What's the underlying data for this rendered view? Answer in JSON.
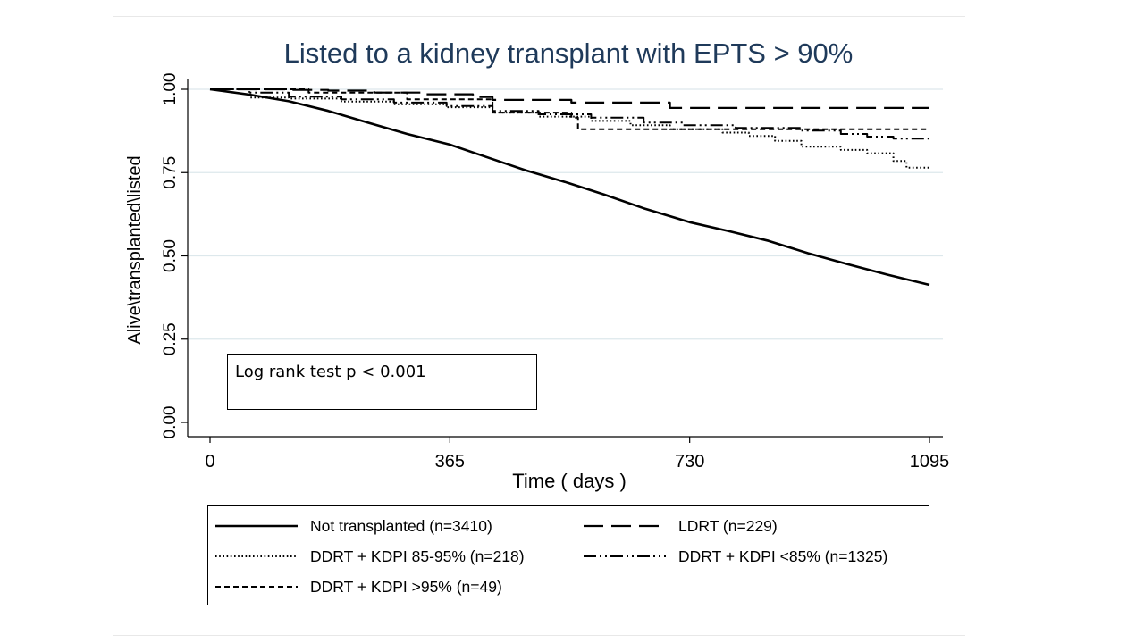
{
  "chart_data": {
    "type": "line",
    "title": "Listed to a kidney transplant with EPTS > 90%",
    "xlabel": "Time ( days )",
    "ylabel": "Alive\\transplanted\\listed",
    "xlim": [
      0,
      1095
    ],
    "ylim": [
      0,
      1
    ],
    "xticks": [
      0,
      365,
      730,
      1095
    ],
    "xtick_labels": [
      "0",
      "365",
      "730",
      "1095"
    ],
    "yticks": [
      0,
      0.25,
      0.5,
      0.75,
      1.0
    ],
    "ytick_labels": [
      "0.00",
      "0.25",
      "0.50",
      "0.75",
      "1.00"
    ],
    "grid": "horizontal",
    "annotation": "Log rank test p < 0.001",
    "series": [
      {
        "name": "Not transplanted (n=3410)",
        "style": "solid",
        "x": [
          0,
          60,
          120,
          180,
          240,
          300,
          365,
          420,
          480,
          540,
          600,
          660,
          730,
          790,
          850,
          910,
          970,
          1030,
          1095
        ],
        "y": [
          1.0,
          0.984,
          0.964,
          0.935,
          0.9,
          0.866,
          0.834,
          0.797,
          0.757,
          0.722,
          0.684,
          0.643,
          0.601,
          0.574,
          0.545,
          0.508,
          0.475,
          0.444,
          0.413
        ]
      },
      {
        "name": "LDRT (n=229)",
        "style": "longdash",
        "x": [
          0,
          120,
          180,
          250,
          320,
          400,
          430,
          550,
          700,
          900,
          1095
        ],
        "y": [
          1.0,
          0.998,
          0.996,
          0.99,
          0.985,
          0.977,
          0.968,
          0.96,
          0.944,
          0.944,
          0.944
        ]
      },
      {
        "name": "DDRT + KDPI 85-95% (n=218)",
        "style": "dotted",
        "x": [
          0,
          60,
          120,
          200,
          280,
          360,
          430,
          500,
          580,
          640,
          700,
          780,
          820,
          860,
          900,
          960,
          1000,
          1040,
          1060,
          1095
        ],
        "y": [
          1.0,
          0.975,
          0.972,
          0.963,
          0.955,
          0.946,
          0.93,
          0.918,
          0.905,
          0.892,
          0.88,
          0.87,
          0.86,
          0.845,
          0.828,
          0.818,
          0.808,
          0.785,
          0.765,
          0.765
        ]
      },
      {
        "name": "DDRT + KDPI <85% (n=1325)",
        "style": "dashdotdot",
        "x": [
          0,
          60,
          120,
          200,
          280,
          360,
          430,
          500,
          580,
          660,
          720,
          800,
          900,
          960,
          1000,
          1040,
          1095
        ],
        "y": [
          1.0,
          0.99,
          0.978,
          0.97,
          0.96,
          0.95,
          0.935,
          0.925,
          0.915,
          0.9,
          0.892,
          0.884,
          0.876,
          0.866,
          0.858,
          0.852,
          0.848
        ]
      },
      {
        "name": "DDRT + KDPI >95% (n=49)",
        "style": "shortdash",
        "x": [
          0,
          150,
          300,
          430,
          550,
          560,
          750,
          900,
          1095
        ],
        "y": [
          1.0,
          0.99,
          0.97,
          0.93,
          0.915,
          0.88,
          0.88,
          0.88,
          0.88
        ]
      }
    ]
  }
}
